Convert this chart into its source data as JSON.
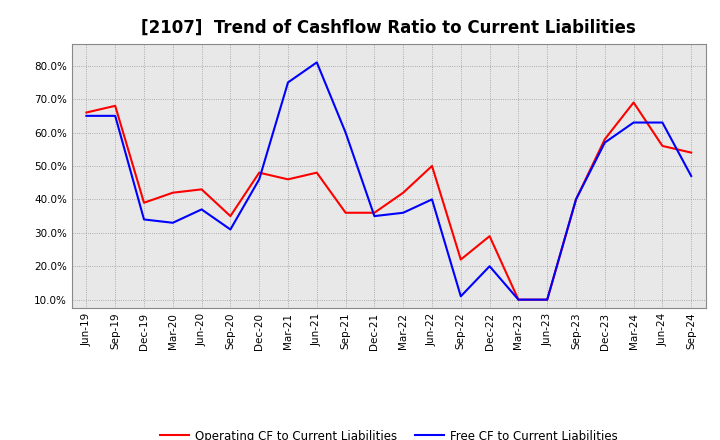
{
  "title": "[2107]  Trend of Cashflow Ratio to Current Liabilities",
  "x_labels": [
    "Jun-19",
    "Sep-19",
    "Dec-19",
    "Mar-20",
    "Jun-20",
    "Sep-20",
    "Dec-20",
    "Mar-21",
    "Jun-21",
    "Sep-21",
    "Dec-21",
    "Mar-22",
    "Jun-22",
    "Sep-22",
    "Dec-22",
    "Mar-23",
    "Jun-23",
    "Sep-23",
    "Dec-23",
    "Mar-24",
    "Jun-24",
    "Sep-24"
  ],
  "operating_cf": [
    0.66,
    0.68,
    0.39,
    0.42,
    0.43,
    0.35,
    0.48,
    0.46,
    0.48,
    0.36,
    0.36,
    0.42,
    0.5,
    0.22,
    0.29,
    0.1,
    0.1,
    0.4,
    0.58,
    0.69,
    0.56,
    0.54
  ],
  "free_cf": [
    0.65,
    0.65,
    0.34,
    0.33,
    0.37,
    0.31,
    0.46,
    0.75,
    0.81,
    0.6,
    0.35,
    0.36,
    0.4,
    0.11,
    0.2,
    0.1,
    0.1,
    0.4,
    0.57,
    0.63,
    0.63,
    0.47
  ],
  "operating_color": "#ff0000",
  "free_color": "#0000ff",
  "background_color": "#ffffff",
  "plot_bg_color": "#e8e8e8",
  "grid_color": "#999999",
  "yticks": [
    0.1,
    0.2,
    0.3,
    0.4,
    0.5,
    0.6,
    0.7,
    0.8
  ],
  "ylim": [
    0.075,
    0.865
  ],
  "legend_operating": "Operating CF to Current Liabilities",
  "legend_free": "Free CF to Current Liabilities",
  "title_fontsize": 12,
  "tick_fontsize": 7.5,
  "legend_fontsize": 8.5
}
